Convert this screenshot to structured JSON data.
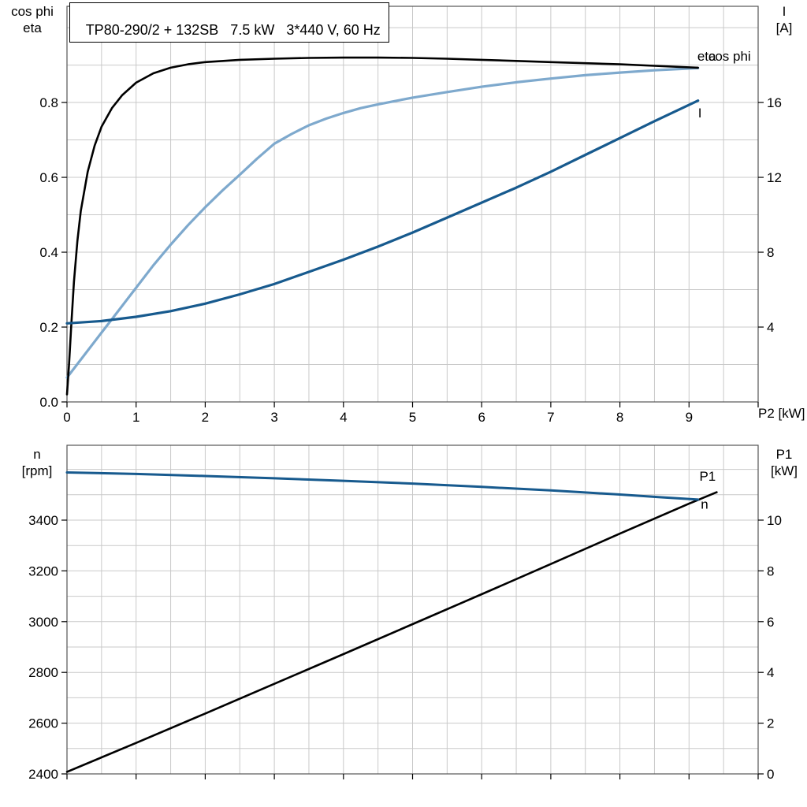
{
  "title_box": {
    "text": "TP80-290/2 + 132SB   7.5 kW   3*440 V, 60 Hz"
  },
  "colors": {
    "dark_blue": "#175a8e",
    "light_blue": "#7ea9cd",
    "black": "#000000",
    "grid": "#c9c9c9"
  },
  "chart_data": [
    {
      "id": "top",
      "type": "line",
      "title": "TP80-290/2 + 132SB   7.5 kW   3*440 V, 60 Hz",
      "x_axis": {
        "label": "P2 [kW]",
        "min": 0,
        "max": 10,
        "tick_values": [
          0,
          1,
          2,
          3,
          4,
          5,
          6,
          7,
          8,
          9
        ],
        "grid_step": 0.5,
        "decimals": 0
      },
      "y_axis_left": {
        "label_lines": [
          "cos phi",
          "eta"
        ],
        "min": 0,
        "max": 1.057,
        "tick_values": [
          0,
          0.2,
          0.4,
          0.6,
          0.8
        ],
        "grid_step": 0.1,
        "decimals": 1
      },
      "y_axis_right": {
        "label_lines": [
          "I",
          "[A]"
        ],
        "min": 0,
        "max": 21.14,
        "tick_values": [
          4,
          8,
          12,
          16
        ],
        "grid_step": 2,
        "decimals": 0
      },
      "series": [
        {
          "name": "eta",
          "axis": "left",
          "color": "#7ea9cd",
          "width": 3.2,
          "label": {
            "text": "eta",
            "x": 9.12,
            "y": 0.912,
            "color": "#6d8196"
          },
          "points": [
            [
              0,
              0.065
            ],
            [
              0.25,
              0.125
            ],
            [
              0.5,
              0.185
            ],
            [
              0.75,
              0.245
            ],
            [
              1.0,
              0.305
            ],
            [
              1.25,
              0.365
            ],
            [
              1.5,
              0.42
            ],
            [
              1.75,
              0.472
            ],
            [
              2.0,
              0.52
            ],
            [
              2.25,
              0.565
            ],
            [
              2.5,
              0.607
            ],
            [
              2.75,
              0.65
            ],
            [
              3.0,
              0.69
            ],
            [
              3.25,
              0.716
            ],
            [
              3.5,
              0.739
            ],
            [
              3.75,
              0.757
            ],
            [
              4.0,
              0.772
            ],
            [
              4.25,
              0.785
            ],
            [
              4.5,
              0.795
            ],
            [
              5.0,
              0.813
            ],
            [
              5.5,
              0.828
            ],
            [
              6.0,
              0.842
            ],
            [
              6.5,
              0.854
            ],
            [
              7.0,
              0.864
            ],
            [
              7.5,
              0.873
            ],
            [
              8.0,
              0.88
            ],
            [
              8.5,
              0.886
            ],
            [
              9.13,
              0.892
            ]
          ]
        },
        {
          "name": "cos phi",
          "axis": "left",
          "color": "#000000",
          "width": 2.6,
          "label": {
            "text": "cos phi",
            "x": 9.28,
            "y": 0.912,
            "color": "#8ab1d4"
          },
          "points": [
            [
              0,
              0.02
            ],
            [
              0.03,
              0.1
            ],
            [
              0.06,
              0.2
            ],
            [
              0.1,
              0.32
            ],
            [
              0.15,
              0.43
            ],
            [
              0.2,
              0.51
            ],
            [
              0.3,
              0.615
            ],
            [
              0.4,
              0.685
            ],
            [
              0.5,
              0.735
            ],
            [
              0.65,
              0.785
            ],
            [
              0.8,
              0.82
            ],
            [
              1.0,
              0.853
            ],
            [
              1.25,
              0.878
            ],
            [
              1.5,
              0.893
            ],
            [
              1.75,
              0.902
            ],
            [
              2.0,
              0.908
            ],
            [
              2.5,
              0.914
            ],
            [
              3.0,
              0.917
            ],
            [
              3.5,
              0.919
            ],
            [
              4.0,
              0.92
            ],
            [
              4.5,
              0.92
            ],
            [
              5.0,
              0.919
            ],
            [
              5.5,
              0.917
            ],
            [
              6.0,
              0.914
            ],
            [
              6.5,
              0.911
            ],
            [
              7.0,
              0.908
            ],
            [
              7.5,
              0.905
            ],
            [
              8.0,
              0.902
            ],
            [
              8.5,
              0.898
            ],
            [
              9.13,
              0.893
            ]
          ]
        },
        {
          "name": "I",
          "axis": "right",
          "color": "#175a8e",
          "width": 3.2,
          "label": {
            "text": "I",
            "x": 9.13,
            "y": 15.2,
            "color": "#175a8e"
          },
          "points": [
            [
              0,
              4.2
            ],
            [
              0.5,
              4.32
            ],
            [
              1.0,
              4.55
            ],
            [
              1.5,
              4.85
            ],
            [
              2.0,
              5.25
            ],
            [
              2.5,
              5.75
            ],
            [
              3.0,
              6.3
            ],
            [
              3.5,
              6.95
            ],
            [
              4.0,
              7.6
            ],
            [
              4.5,
              8.3
            ],
            [
              5.0,
              9.05
            ],
            [
              5.5,
              9.85
            ],
            [
              6.0,
              10.65
            ],
            [
              6.5,
              11.45
            ],
            [
              7.0,
              12.3
            ],
            [
              7.5,
              13.2
            ],
            [
              8.0,
              14.1
            ],
            [
              8.5,
              15.0
            ],
            [
              9.13,
              16.1
            ]
          ]
        }
      ]
    },
    {
      "id": "bottom",
      "type": "line",
      "title": "",
      "x_axis": {
        "label": "",
        "min": 0,
        "max": 10,
        "tick_values": [],
        "grid_step": 0.5,
        "decimals": 0
      },
      "y_axis_left": {
        "label_lines": [
          "n",
          "[rpm]"
        ],
        "min": 2400,
        "max": 3695,
        "tick_values": [
          2400,
          2600,
          2800,
          3000,
          3200,
          3400
        ],
        "grid_step": 100,
        "decimals": 0
      },
      "y_axis_right": {
        "label_lines": [
          "P1",
          "[kW]"
        ],
        "min": 0,
        "max": 12.95,
        "tick_values": [
          0,
          2,
          4,
          6,
          8,
          10
        ],
        "grid_step": 2,
        "decimals": 0
      },
      "series": [
        {
          "name": "P1",
          "axis": "right",
          "color": "#000000",
          "width": 2.6,
          "label": {
            "text": "P1",
            "x": 9.15,
            "y": 11.55,
            "color": "#000000"
          },
          "points": [
            [
              0,
              0.08
            ],
            [
              1,
              1.22
            ],
            [
              2,
              2.38
            ],
            [
              3,
              3.55
            ],
            [
              4,
              4.72
            ],
            [
              5,
              5.9
            ],
            [
              6,
              7.08
            ],
            [
              7,
              8.27
            ],
            [
              8,
              9.47
            ],
            [
              9,
              10.65
            ],
            [
              9.4,
              11.1
            ]
          ]
        },
        {
          "name": "n",
          "axis": "left",
          "color": "#175a8e",
          "width": 3.0,
          "label": {
            "text": "n",
            "x": 9.17,
            "y": 3445,
            "color": "#175a8e"
          },
          "points": [
            [
              0,
              3588
            ],
            [
              1,
              3582
            ],
            [
              2,
              3574
            ],
            [
              3,
              3565
            ],
            [
              4,
              3555
            ],
            [
              5,
              3544
            ],
            [
              6,
              3531
            ],
            [
              7,
              3517
            ],
            [
              8,
              3501
            ],
            [
              8.6,
              3490
            ],
            [
              9.13,
              3481
            ]
          ]
        }
      ]
    }
  ]
}
